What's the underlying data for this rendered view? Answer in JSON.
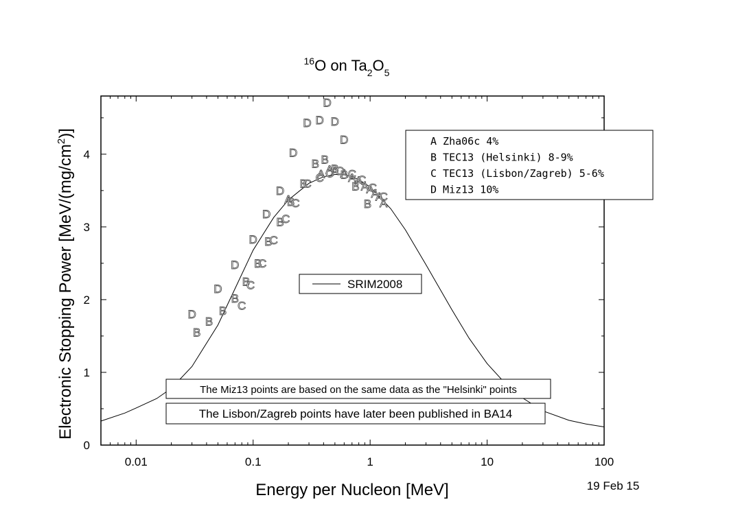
{
  "chart_data": {
    "type": "scatter",
    "title": {
      "mass": "16",
      "pre": "O on Ta",
      "sub1": "2",
      "mid": "O",
      "sub2": "5"
    },
    "xlabel": "Energy per Nucleon [MeV]",
    "ylabel": {
      "main": "Electronic Stopping Power [MeV/(mg/cm",
      "sup": "2",
      "end": ")]"
    },
    "xscale": "log",
    "xlim": [
      0.005,
      100
    ],
    "ylim": [
      0,
      4.8
    ],
    "x_ticks": [
      {
        "value": 0.01,
        "label": "0.01"
      },
      {
        "value": 0.1,
        "label": "0.1"
      },
      {
        "value": 1,
        "label": "1"
      },
      {
        "value": 10,
        "label": "10"
      },
      {
        "value": 100,
        "label": "100"
      }
    ],
    "y_ticks": [
      {
        "value": 0,
        "label": "0"
      },
      {
        "value": 1,
        "label": "1"
      },
      {
        "value": 2,
        "label": "2"
      },
      {
        "value": 3,
        "label": "3"
      },
      {
        "value": 4,
        "label": "4"
      }
    ],
    "legend": {
      "placement": "top-right",
      "entries": [
        {
          "symbol": "A",
          "label": "Zha06c 4%"
        },
        {
          "symbol": "B",
          "label": "TEC13 (Helsinki) 8-9%"
        },
        {
          "symbol": "C",
          "label": "TEC13 (Lisbon/Zagreb) 5-6%"
        },
        {
          "symbol": "D",
          "label": "Miz13  10%"
        }
      ]
    },
    "line_legend": "SRIM2008",
    "notes": [
      "The Miz13 points are based on the same data as the \"Helsinki\" points",
      "The Lisbon/Zagreb points have later been published in BA14"
    ],
    "date": "19 Feb 15",
    "series": [
      {
        "name": "SRIM2008",
        "kind": "line",
        "x": [
          0.005,
          0.008,
          0.01,
          0.015,
          0.02,
          0.03,
          0.05,
          0.07,
          0.1,
          0.15,
          0.2,
          0.3,
          0.4,
          0.5,
          0.6,
          0.7,
          0.8,
          1,
          1.5,
          2,
          3,
          5,
          7,
          10,
          15,
          20,
          30,
          50,
          70,
          100
        ],
        "y": [
          0.33,
          0.44,
          0.51,
          0.64,
          0.78,
          1.08,
          1.65,
          2.15,
          2.68,
          3.13,
          3.37,
          3.6,
          3.69,
          3.72,
          3.72,
          3.69,
          3.65,
          3.55,
          3.25,
          2.96,
          2.48,
          1.86,
          1.47,
          1.12,
          0.81,
          0.65,
          0.47,
          0.34,
          0.29,
          0.25
        ]
      },
      {
        "name": "Zha06c 4%",
        "symbol": "A",
        "x": [
          0.2,
          0.38,
          0.45,
          0.5,
          0.6,
          0.7,
          0.8,
          0.9,
          1.0,
          1.1,
          1.2,
          1.3
        ],
        "y": [
          3.38,
          3.73,
          3.79,
          3.77,
          3.74,
          3.68,
          3.64,
          3.56,
          3.52,
          3.46,
          3.42,
          3.33
        ]
      },
      {
        "name": "TEC13 (Helsinki) 8-9%",
        "symbol": "B",
        "x": [
          0.033,
          0.042,
          0.055,
          0.07,
          0.087,
          0.11,
          0.135,
          0.17,
          0.21,
          0.27,
          0.34,
          0.41,
          0.5,
          0.6,
          0.75,
          0.95
        ],
        "y": [
          1.55,
          1.7,
          1.85,
          2.02,
          2.25,
          2.5,
          2.8,
          3.07,
          3.35,
          3.6,
          3.87,
          3.93,
          3.8,
          3.72,
          3.56,
          3.32
        ]
      },
      {
        "name": "TEC13 (Lisbon/Zagreb) 5-6%",
        "symbol": "C",
        "x": [
          0.08,
          0.095,
          0.12,
          0.15,
          0.19,
          0.23,
          0.29,
          0.37,
          0.45,
          0.55,
          0.7,
          0.85,
          1.05,
          1.3
        ],
        "y": [
          1.92,
          2.2,
          2.5,
          2.82,
          3.11,
          3.33,
          3.6,
          3.68,
          3.74,
          3.77,
          3.73,
          3.65,
          3.54,
          3.42
        ]
      },
      {
        "name": "Miz13  10%",
        "symbol": "D",
        "x": [
          0.03,
          0.05,
          0.07,
          0.1,
          0.13,
          0.17,
          0.22,
          0.29,
          0.37,
          0.43,
          0.5,
          0.6
        ],
        "y": [
          1.8,
          2.15,
          2.48,
          2.83,
          3.18,
          3.5,
          4.02,
          4.43,
          4.47,
          4.71,
          4.45,
          4.2
        ]
      }
    ]
  }
}
